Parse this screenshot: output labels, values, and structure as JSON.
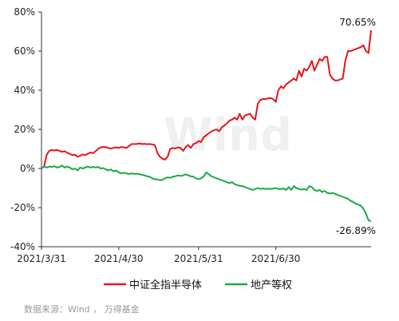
{
  "chart_data": {
    "type": "line",
    "xlabel": "",
    "ylabel": "",
    "ylim": [
      -40,
      80
    ],
    "yticks": [
      80,
      60,
      40,
      20,
      0,
      -20,
      -40
    ],
    "ytick_labels": [
      "80%",
      "60%",
      "40%",
      "20%",
      "0%",
      "-20%",
      "-40%"
    ],
    "x_tick_labels": [
      "2021/3/31",
      "2021/4/30",
      "2021/5/31",
      "2021/6/30"
    ],
    "x_tick_positions": [
      0,
      30,
      61,
      91
    ],
    "xlim": [
      0,
      120
    ],
    "grid": false,
    "legend_position": "bottom",
    "watermark": "Wind",
    "source_note": "数据来源：Wind ， 万得基金",
    "series": [
      {
        "name": "中证全指半导体",
        "color": "#e8141c",
        "end_label": "70.65%",
        "points": [
          [
            0,
            0
          ],
          [
            1,
            1
          ],
          [
            2,
            7
          ],
          [
            3,
            9
          ],
          [
            4,
            9.5
          ],
          [
            5,
            9.2
          ],
          [
            6,
            9.5
          ],
          [
            7,
            9
          ],
          [
            8,
            8.5
          ],
          [
            9,
            8.8
          ],
          [
            10,
            8
          ],
          [
            11,
            7.5
          ],
          [
            12,
            6.8
          ],
          [
            13,
            7
          ],
          [
            14,
            6
          ],
          [
            15,
            6.5
          ],
          [
            16,
            7.2
          ],
          [
            17,
            6.8
          ],
          [
            18,
            7.5
          ],
          [
            19,
            8.2
          ],
          [
            20,
            7.8
          ],
          [
            21,
            8.8
          ],
          [
            22,
            10
          ],
          [
            23,
            10.8
          ],
          [
            24,
            11
          ],
          [
            25,
            11
          ],
          [
            26,
            10.5
          ],
          [
            27,
            10.2
          ],
          [
            28,
            10.5
          ],
          [
            29,
            10.8
          ],
          [
            30,
            10.5
          ],
          [
            31,
            11
          ],
          [
            32,
            10.8
          ],
          [
            33,
            10.5
          ],
          [
            34,
            11.5
          ],
          [
            35,
            12.5
          ],
          [
            36,
            12.5
          ],
          [
            37,
            12.5
          ],
          [
            38,
            12.8
          ],
          [
            39,
            12.5
          ],
          [
            40,
            12.6
          ],
          [
            41,
            12.4
          ],
          [
            42,
            12.5
          ],
          [
            43,
            12.3
          ],
          [
            44,
            12
          ],
          [
            45,
            8
          ],
          [
            46,
            6
          ],
          [
            47,
            5
          ],
          [
            48,
            4.5
          ],
          [
            49,
            6
          ],
          [
            50,
            10
          ],
          [
            51,
            10.5
          ],
          [
            52,
            10.2
          ],
          [
            53,
            10.8
          ],
          [
            54,
            10.5
          ],
          [
            55,
            9
          ],
          [
            56,
            11
          ],
          [
            57,
            12
          ],
          [
            58,
            10.5
          ],
          [
            59,
            12.5
          ],
          [
            60,
            13
          ],
          [
            61,
            14
          ],
          [
            62,
            13.5
          ],
          [
            63,
            16
          ],
          [
            64,
            17
          ],
          [
            65,
            18
          ],
          [
            66,
            19
          ],
          [
            67,
            19.5
          ],
          [
            68,
            20
          ],
          [
            69,
            19
          ],
          [
            70,
            21
          ],
          [
            71,
            22
          ],
          [
            72,
            23
          ],
          [
            73,
            24.5
          ],
          [
            74,
            25
          ],
          [
            75,
            26
          ],
          [
            76,
            25
          ],
          [
            77,
            28
          ],
          [
            78,
            25
          ],
          [
            79,
            27
          ],
          [
            80,
            27.5
          ],
          [
            81,
            28
          ],
          [
            82,
            26
          ],
          [
            83,
            25
          ],
          [
            84,
            33
          ],
          [
            85,
            35
          ],
          [
            86,
            35.5
          ],
          [
            87,
            35.5
          ],
          [
            88,
            35.8
          ],
          [
            89,
            36
          ],
          [
            90,
            35.5
          ],
          [
            91,
            34
          ],
          [
            92,
            40
          ],
          [
            93,
            42
          ],
          [
            94,
            41
          ],
          [
            95,
            43
          ],
          [
            96,
            44
          ],
          [
            97,
            45
          ],
          [
            98,
            46
          ],
          [
            99,
            45
          ],
          [
            100,
            50
          ],
          [
            101,
            47
          ],
          [
            102,
            51
          ],
          [
            103,
            50
          ],
          [
            104,
            52
          ],
          [
            105,
            55
          ],
          [
            106,
            50
          ],
          [
            107,
            53
          ],
          [
            108,
            56
          ],
          [
            109,
            55
          ],
          [
            110,
            57
          ],
          [
            111,
            57
          ],
          [
            112,
            48
          ],
          [
            113,
            46
          ],
          [
            114,
            45
          ],
          [
            115,
            45
          ],
          [
            116,
            45.5
          ],
          [
            117,
            46
          ],
          [
            118,
            55
          ],
          [
            119,
            60
          ],
          [
            120,
            60
          ],
          [
            121,
            60.5
          ],
          [
            122,
            61
          ],
          [
            123,
            61.5
          ],
          [
            124,
            62
          ],
          [
            125,
            63
          ],
          [
            126,
            60
          ],
          [
            127,
            59
          ],
          [
            128,
            70.65
          ]
        ]
      },
      {
        "name": "地产等权",
        "color": "#1ea845",
        "end_label": "-26.89%",
        "points": [
          [
            0,
            0
          ],
          [
            1,
            1
          ],
          [
            2,
            0.5
          ],
          [
            3,
            1
          ],
          [
            4,
            0.8
          ],
          [
            5,
            1.2
          ],
          [
            6,
            0.5
          ],
          [
            7,
            0.8
          ],
          [
            8,
            1.5
          ],
          [
            9,
            0.5
          ],
          [
            10,
            1
          ],
          [
            11,
            0.5
          ],
          [
            12,
            -0.5
          ],
          [
            13,
            0
          ],
          [
            14,
            -1
          ],
          [
            15,
            0.5
          ],
          [
            16,
            0
          ],
          [
            17,
            0.5
          ],
          [
            18,
            1
          ],
          [
            19,
            0.5
          ],
          [
            20,
            0.8
          ],
          [
            21,
            0.5
          ],
          [
            22,
            0.8
          ],
          [
            23,
            0
          ],
          [
            24,
            0.2
          ],
          [
            25,
            -0.5
          ],
          [
            26,
            -1
          ],
          [
            27,
            -0.5
          ],
          [
            28,
            -1.5
          ],
          [
            29,
            -1
          ],
          [
            30,
            -2
          ],
          [
            31,
            -2.5
          ],
          [
            32,
            -2.2
          ],
          [
            33,
            -2.5
          ],
          [
            34,
            -2.8
          ],
          [
            35,
            -2.5
          ],
          [
            36,
            -2.8
          ],
          [
            37,
            -2.6
          ],
          [
            38,
            -3
          ],
          [
            39,
            -3.2
          ],
          [
            40,
            -3.5
          ],
          [
            41,
            -4
          ],
          [
            42,
            -4.2
          ],
          [
            43,
            -5
          ],
          [
            44,
            -5.5
          ],
          [
            45,
            -5.5
          ],
          [
            46,
            -6
          ],
          [
            47,
            -5.8
          ],
          [
            48,
            -5
          ],
          [
            49,
            -4.5
          ],
          [
            50,
            -4.8
          ],
          [
            51,
            -4.2
          ],
          [
            52,
            -4
          ],
          [
            53,
            -3.5
          ],
          [
            54,
            -3.8
          ],
          [
            55,
            -3.5
          ],
          [
            56,
            -3
          ],
          [
            57,
            -3.5
          ],
          [
            58,
            -4
          ],
          [
            59,
            -4.2
          ],
          [
            60,
            -5
          ],
          [
            61,
            -5.5
          ],
          [
            62,
            -5
          ],
          [
            63,
            -4
          ],
          [
            64,
            -2
          ],
          [
            65,
            -3
          ],
          [
            66,
            -4
          ],
          [
            67,
            -4.5
          ],
          [
            68,
            -5
          ],
          [
            69,
            -5.5
          ],
          [
            70,
            -6
          ],
          [
            71,
            -6.5
          ],
          [
            72,
            -7
          ],
          [
            73,
            -7.5
          ],
          [
            74,
            -7
          ],
          [
            75,
            -8
          ],
          [
            76,
            -8.5
          ],
          [
            77,
            -8.8
          ],
          [
            78,
            -9
          ],
          [
            79,
            -9.5
          ],
          [
            80,
            -10
          ],
          [
            81,
            -10.5
          ],
          [
            82,
            -11
          ],
          [
            83,
            -10.5
          ],
          [
            84,
            -10
          ],
          [
            85,
            -10.5
          ],
          [
            86,
            -10.2
          ],
          [
            87,
            -10.5
          ],
          [
            88,
            -10.3
          ],
          [
            89,
            -10.5
          ],
          [
            90,
            -10.2
          ],
          [
            91,
            -10
          ],
          [
            92,
            -10.5
          ],
          [
            93,
            -10.5
          ],
          [
            94,
            -10.2
          ],
          [
            95,
            -11
          ],
          [
            96,
            -9.5
          ],
          [
            97,
            -11
          ],
          [
            98,
            -9
          ],
          [
            99,
            -10
          ],
          [
            100,
            -10.5
          ],
          [
            101,
            -10.8
          ],
          [
            102,
            -10.5
          ],
          [
            103,
            -11
          ],
          [
            104,
            -9
          ],
          [
            105,
            -9.5
          ],
          [
            106,
            -11
          ],
          [
            107,
            -11.5
          ],
          [
            108,
            -11
          ],
          [
            109,
            -12
          ],
          [
            110,
            -11.5
          ],
          [
            111,
            -12.5
          ],
          [
            112,
            -12.8
          ],
          [
            113,
            -12.5
          ],
          [
            114,
            -13
          ],
          [
            115,
            -13.5
          ],
          [
            116,
            -14
          ],
          [
            117,
            -14.5
          ],
          [
            118,
            -15
          ],
          [
            119,
            -15.5
          ],
          [
            120,
            -16.5
          ],
          [
            121,
            -17
          ],
          [
            122,
            -18
          ],
          [
            123,
            -18.5
          ],
          [
            124,
            -19
          ],
          [
            125,
            -20.5
          ],
          [
            126,
            -23
          ],
          [
            127,
            -26.5
          ],
          [
            128,
            -26.89
          ]
        ]
      }
    ]
  }
}
